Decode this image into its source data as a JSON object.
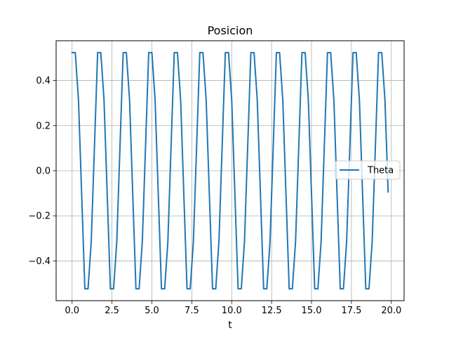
{
  "chart_data": {
    "type": "line",
    "title": "Posicion",
    "xlabel": "t",
    "ylabel": "",
    "xlim": [
      -1.0,
      20.8
    ],
    "ylim": [
      -0.5762,
      0.5762
    ],
    "xticks": [
      0.0,
      2.5,
      5.0,
      7.5,
      10.0,
      12.5,
      15.0,
      17.5,
      20.0
    ],
    "xtick_labels": [
      "0.0",
      "2.5",
      "5.0",
      "7.5",
      "10.0",
      "12.5",
      "15.0",
      "17.5",
      "20.0"
    ],
    "yticks": [
      -0.4,
      -0.2,
      0.0,
      0.2,
      0.4
    ],
    "ytick_labels": [
      "−0.4",
      "−0.2",
      "0.0",
      "0.2",
      "0.4"
    ],
    "grid": true,
    "legend": {
      "position": "center-right",
      "entries": [
        "Theta"
      ]
    },
    "series": [
      {
        "name": "Theta",
        "color": "#1f77b4",
        "x": [
          0.0,
          0.2,
          0.4,
          0.6,
          0.8,
          1.0,
          1.2,
          1.4,
          1.6,
          1.8,
          2.0,
          2.2,
          2.4,
          2.6,
          2.8,
          3.0,
          3.2,
          3.4,
          3.6,
          3.8,
          4.0,
          4.2,
          4.4,
          4.6,
          4.8,
          5.0,
          5.2,
          5.4,
          5.6,
          5.8,
          6.0,
          6.2,
          6.4,
          6.6,
          6.8,
          7.0,
          7.2,
          7.4,
          7.6,
          7.8,
          8.0,
          8.2,
          8.4,
          8.6,
          8.8,
          9.0,
          9.2,
          9.4,
          9.6,
          9.8,
          10.0,
          10.2,
          10.4,
          10.6,
          10.8,
          11.0,
          11.2,
          11.4,
          11.6,
          11.8,
          12.0,
          12.2,
          12.4,
          12.6,
          12.8,
          13.0,
          13.2,
          13.4,
          13.6,
          13.8,
          14.0,
          14.2,
          14.4,
          14.6,
          14.8,
          15.0,
          15.2,
          15.4,
          15.6,
          15.8,
          16.0,
          16.2,
          16.4,
          16.6,
          16.8,
          17.0,
          17.2,
          17.4,
          17.6,
          17.8,
          18.0,
          18.2,
          18.4,
          18.6,
          18.8,
          19.0,
          19.2,
          19.4,
          19.6,
          19.8
        ],
        "y": [
          0.5236,
          0.5236,
          0.3141,
          -0.1047,
          -0.5236,
          -0.5236,
          -0.3141,
          0.1047,
          0.5236,
          0.5236,
          0.3141,
          -0.1047,
          -0.5236,
          -0.5236,
          -0.3141,
          0.1047,
          0.5236,
          0.5236,
          0.3141,
          -0.1047,
          -0.5236,
          -0.5236,
          -0.3141,
          0.1047,
          0.5236,
          0.5236,
          0.3141,
          -0.1047,
          -0.5236,
          -0.5236,
          -0.3141,
          0.1047,
          0.5236,
          0.5236,
          0.3141,
          -0.1047,
          -0.5236,
          -0.5236,
          -0.3141,
          0.1047,
          0.5236,
          0.5236,
          0.3141,
          -0.1047,
          -0.5236,
          -0.5236,
          -0.3141,
          0.1047,
          0.5236,
          0.5236,
          0.3141,
          -0.1047,
          -0.5236,
          -0.5236,
          -0.3141,
          0.1047,
          0.5236,
          0.5236,
          0.3141,
          -0.1047,
          -0.5236,
          -0.5236,
          -0.3141,
          0.1047,
          0.5236,
          0.5236,
          0.3141,
          -0.1047,
          -0.5236,
          -0.5236,
          -0.3141,
          0.1047,
          0.5236,
          0.5236,
          0.3141,
          -0.1047,
          -0.5236,
          -0.5236,
          -0.3141,
          0.1047,
          0.5236,
          0.5236,
          0.3141,
          -0.1047,
          -0.5236,
          -0.5236,
          -0.3141,
          0.1047,
          0.5236,
          0.5236,
          0.3141,
          -0.1047,
          -0.5236,
          -0.5236,
          -0.3141,
          0.1047,
          0.5236,
          0.5236,
          0.3141,
          -0.0942
        ]
      }
    ]
  }
}
